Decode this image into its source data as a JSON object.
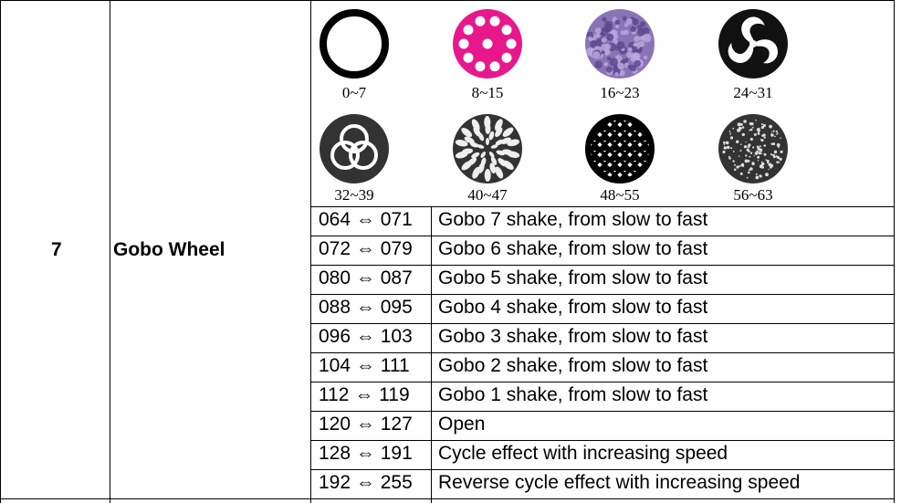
{
  "channel": "7",
  "function": "Gobo Wheel",
  "gobos": [
    {
      "range": "0~7",
      "icon": "open-ring-icon"
    },
    {
      "range": "8~15",
      "icon": "magenta-dots-icon"
    },
    {
      "range": "16~23",
      "icon": "purple-texture-icon"
    },
    {
      "range": "24~31",
      "icon": "swirl-icon"
    },
    {
      "range": "32~39",
      "icon": "triple-ring-icon"
    },
    {
      "range": "40~47",
      "icon": "rose-icon"
    },
    {
      "range": "48~55",
      "icon": "lattice-icon"
    },
    {
      "range": "56~63",
      "icon": "sparkle-spiral-icon"
    }
  ],
  "rows": [
    {
      "value": "064 ⇔ 071",
      "description": "Gobo 7 shake, from slow to fast"
    },
    {
      "value": "072 ⇔ 079",
      "description": "Gobo 6 shake, from slow to fast"
    },
    {
      "value": "080 ⇔ 087",
      "description": "Gobo 5 shake, from slow to fast"
    },
    {
      "value": "088 ⇔ 095",
      "description": "Gobo 4 shake, from slow to fast"
    },
    {
      "value": "096 ⇔ 103",
      "description": "Gobo 3 shake, from slow to fast"
    },
    {
      "value": "104 ⇔ 111",
      "description": "Gobo 2 shake, from slow to fast"
    },
    {
      "value": "112 ⇔ 119",
      "description": "Gobo 1 shake, from slow to fast"
    },
    {
      "value": "120 ⇔ 127",
      "description": "Open"
    },
    {
      "value": "128 ⇔ 191",
      "description": "Cycle effect with increasing speed"
    },
    {
      "value": "192 ⇔ 255",
      "description": "Reverse cycle effect with increasing speed"
    }
  ],
  "colors": {
    "magenta": "#e8188c",
    "purple": "#8a74b8",
    "dark": "#333333"
  }
}
